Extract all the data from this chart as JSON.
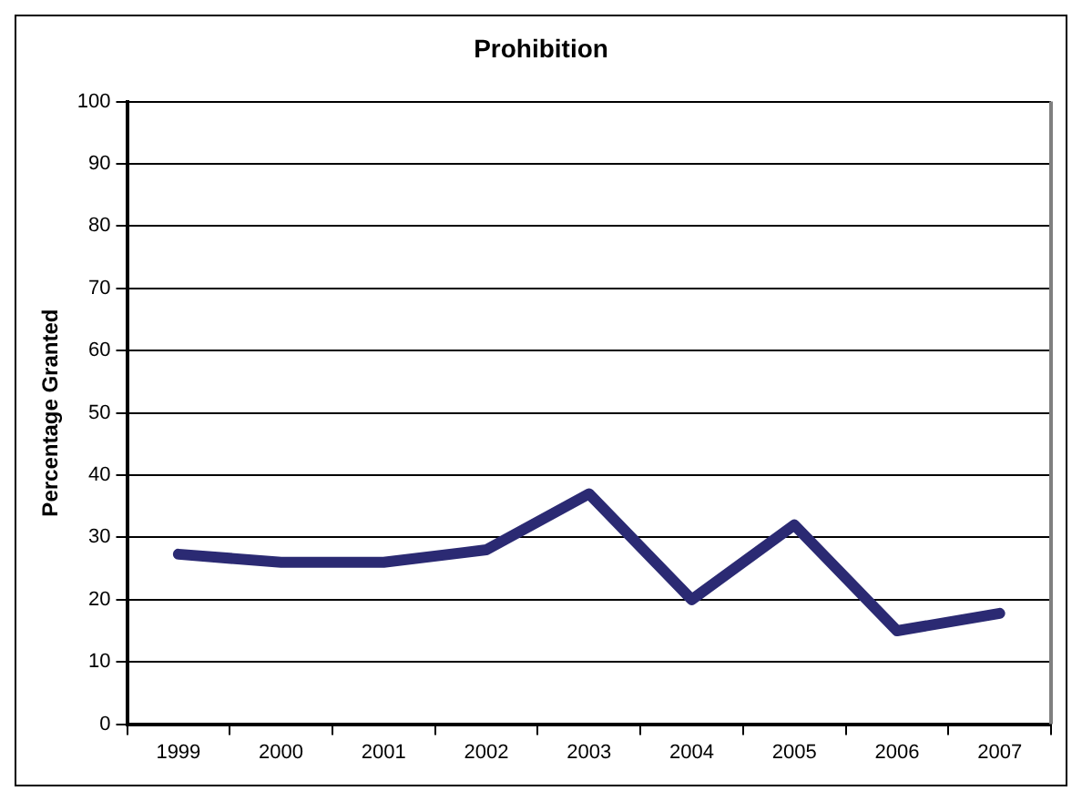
{
  "chart_data": {
    "type": "line",
    "title": "Prohibition",
    "ylabel": "Percentage Granted",
    "categories": [
      "1999",
      "2000",
      "2001",
      "2002",
      "2003",
      "2004",
      "2005",
      "2006",
      "2007"
    ],
    "series": [
      {
        "color": "#2b2a73",
        "values": [
          27.3,
          26,
          26,
          28,
          37,
          20,
          32,
          15,
          17.8
        ]
      }
    ],
    "ylim": [
      0,
      100
    ],
    "yticks": [
      0,
      10,
      20,
      30,
      40,
      50,
      60,
      70,
      80,
      90,
      100
    ],
    "grid": "y",
    "legend": false,
    "marker": "none",
    "line_style": "solid"
  }
}
